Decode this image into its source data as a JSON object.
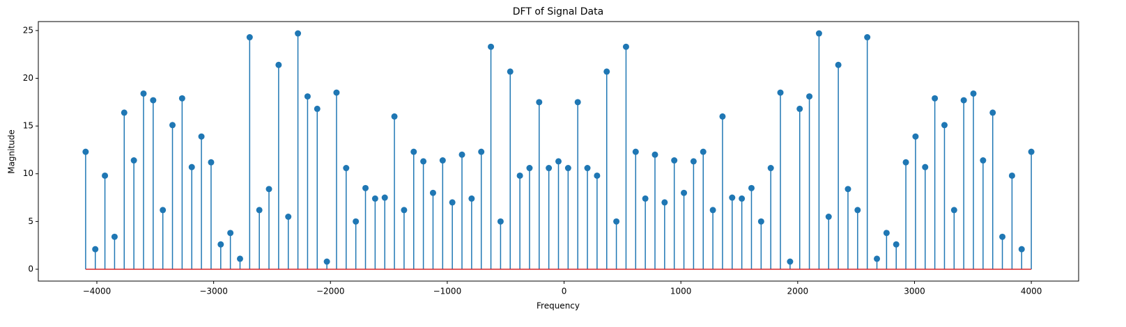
{
  "chart_data": {
    "type": "stem",
    "title": "DFT of Signal Data",
    "xlabel": "Frequency",
    "ylabel": "Magnitude",
    "x": [
      -4096,
      -4013.4,
      -3930.8,
      -3848.2,
      -3765.6,
      -3682.9,
      -3600.3,
      -3517.7,
      -3435.1,
      -3352.5,
      -3269.9,
      -3187.3,
      -3104.7,
      -3022.0,
      -2939.4,
      -2856.8,
      -2774.2,
      -2691.6,
      -2609.0,
      -2526.4,
      -2443.8,
      -2361.1,
      -2278.5,
      -2195.9,
      -2113.3,
      -2030.7,
      -1948.1,
      -1865.5,
      -1782.9,
      -1700.2,
      -1617.6,
      -1535.0,
      -1452.4,
      -1369.8,
      -1287.2,
      -1204.6,
      -1122.0,
      -1039.3,
      -956.7,
      -874.1,
      -791.5,
      -708.9,
      -626.3,
      -543.7,
      -461.1,
      -378.4,
      -295.8,
      -213.2,
      -130.6,
      -48.0,
      34.6,
      117.2,
      199.8,
      282.4,
      365.1,
      447.7,
      530.3,
      612.9,
      695.5,
      778.1,
      860.7,
      943.3,
      1026.0,
      1108.6,
      1191.2,
      1273.8,
      1356.4,
      1439.0,
      1521.6,
      1604.2,
      1686.9,
      1769.5,
      1852.1,
      1934.7,
      2017.3,
      2099.9,
      2182.5,
      2265.1,
      2347.8,
      2430.4,
      2513.0,
      2595.6,
      2678.2,
      2760.8,
      2843.4,
      2926.0,
      3008.7,
      3091.3,
      3173.9,
      3256.5,
      3339.1,
      3421.7,
      3504.3,
      3586.9,
      3669.6,
      3752.2,
      3834.8,
      3917.4,
      4000
    ],
    "values": [
      12.3,
      2.1,
      9.8,
      3.4,
      16.4,
      11.4,
      18.4,
      17.7,
      6.2,
      15.1,
      17.9,
      10.7,
      13.9,
      11.2,
      2.6,
      3.8,
      1.1,
      24.3,
      6.2,
      8.4,
      21.4,
      5.5,
      24.7,
      18.1,
      16.8,
      0.8,
      18.5,
      10.6,
      5.0,
      8.5,
      7.4,
      7.5,
      16.0,
      6.2,
      12.3,
      11.3,
      8.0,
      11.4,
      7.0,
      12.0,
      7.4,
      12.3,
      23.3,
      5.0,
      20.7,
      9.8,
      10.6,
      17.5,
      10.6,
      11.3,
      10.6,
      17.5,
      10.6,
      9.8,
      20.7,
      5.0,
      23.3,
      12.3,
      7.4,
      12.0,
      7.0,
      11.4,
      8.0,
      11.3,
      12.3,
      6.2,
      16.0,
      7.5,
      7.4,
      8.5,
      5.0,
      10.6,
      18.5,
      0.8,
      16.8,
      18.1,
      24.7,
      5.5,
      21.4,
      8.4,
      6.2,
      24.3,
      1.1,
      3.8,
      2.6,
      11.2,
      13.9,
      10.7,
      17.9,
      15.1,
      6.2,
      17.7,
      18.4,
      11.4,
      16.4,
      3.4,
      9.8,
      2.1,
      12.3
    ],
    "color": "#1f77b4",
    "baseline_color": "#d62728",
    "xlim": [
      -4501,
      4405
    ],
    "ylim": [
      -1.24,
      25.94
    ],
    "xticks": [
      {
        "value": -4000,
        "label": "−4000"
      },
      {
        "value": -3000,
        "label": "−3000"
      },
      {
        "value": -2000,
        "label": "−2000"
      },
      {
        "value": -1000,
        "label": "−1000"
      },
      0,
      1000,
      2000,
      3000,
      4000
    ],
    "yticks": [
      0,
      5,
      10,
      15,
      20,
      25
    ]
  }
}
